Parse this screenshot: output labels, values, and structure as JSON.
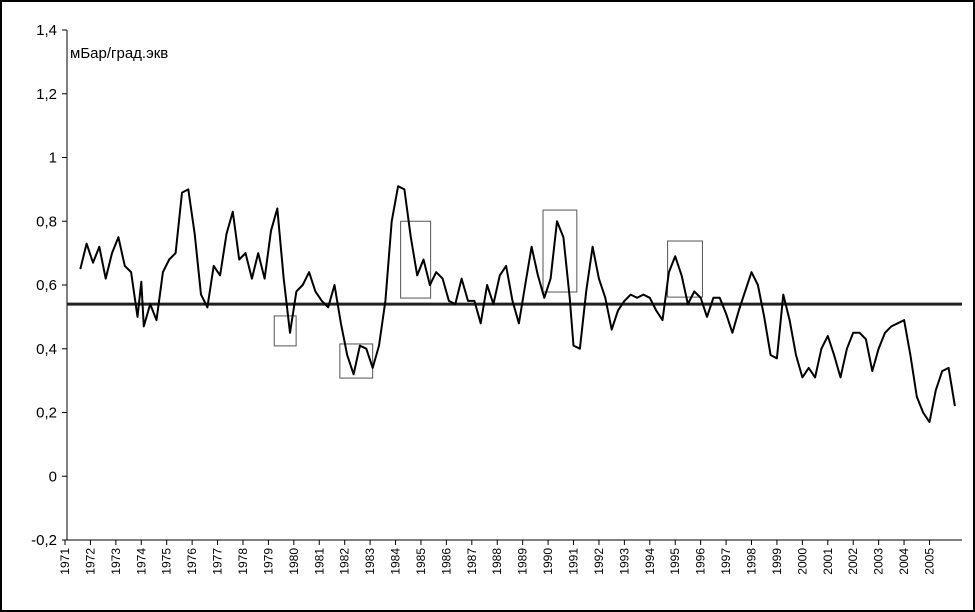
{
  "chart_data": {
    "type": "line",
    "y_label": "мБар/град.экв",
    "xlim": [
      1971,
      2006.2
    ],
    "ylim": [
      -0.2,
      1.4
    ],
    "xticks": [
      1971,
      1972,
      1973,
      1974,
      1975,
      1976,
      1977,
      1978,
      1979,
      1980,
      1981,
      1982,
      1983,
      1984,
      1985,
      1986,
      1987,
      1988,
      1989,
      1990,
      1991,
      1992,
      1993,
      1994,
      1995,
      1996,
      1997,
      1998,
      1999,
      2000,
      2001,
      2002,
      2003,
      2004,
      2005
    ],
    "yticks": [
      {
        "value": -0.2,
        "label": "-0,2"
      },
      0,
      {
        "value": 0.2,
        "label": "0,2"
      },
      {
        "value": 0.4,
        "label": "0,4"
      },
      {
        "value": 0.6,
        "label": "0,6"
      },
      {
        "value": 0.8,
        "label": "0,8"
      },
      1,
      {
        "value": 1.2,
        "label": "1,2"
      },
      {
        "value": 1.4,
        "label": "1,4"
      }
    ],
    "reference_line": {
      "value": 0.54,
      "color": "#222222"
    },
    "boxes": [
      {
        "x": [
          1979.23,
          1980.09
        ],
        "y": [
          0.409,
          0.503
        ]
      },
      {
        "x": [
          1981.81,
          1983.1
        ],
        "y": [
          0.308,
          0.415
        ]
      },
      {
        "x": [
          1984.2,
          1985.38
        ],
        "y": [
          0.559,
          0.8
        ]
      },
      {
        "x": [
          1989.8,
          1991.13
        ],
        "y": [
          0.578,
          0.835
        ]
      },
      {
        "x": [
          1994.7,
          1996.07
        ],
        "y": [
          0.562,
          0.738
        ]
      }
    ],
    "series": [
      {
        "color": "#000000",
        "x": [
          1971.6,
          1971.85,
          1972.1,
          1972.35,
          1972.6,
          1972.85,
          1973.1,
          1973.35,
          1973.6,
          1973.85,
          1974.0,
          1974.1,
          1974.35,
          1974.6,
          1974.85,
          1975.1,
          1975.35,
          1975.6,
          1975.85,
          1976.1,
          1976.35,
          1976.6,
          1976.85,
          1977.1,
          1977.35,
          1977.6,
          1977.85,
          1978.1,
          1978.35,
          1978.6,
          1978.85,
          1979.1,
          1979.35,
          1979.6,
          1979.85,
          1980.1,
          1980.35,
          1980.6,
          1980.85,
          1981.1,
          1981.35,
          1981.6,
          1981.85,
          1982.1,
          1982.35,
          1982.6,
          1982.85,
          1983.1,
          1983.35,
          1983.6,
          1983.85,
          1984.1,
          1984.35,
          1984.6,
          1984.85,
          1985.1,
          1985.35,
          1985.6,
          1985.85,
          1986.1,
          1986.35,
          1986.6,
          1986.85,
          1987.1,
          1987.35,
          1987.6,
          1987.85,
          1988.1,
          1988.35,
          1988.6,
          1988.85,
          1989.1,
          1989.35,
          1989.6,
          1989.85,
          1990.1,
          1990.35,
          1990.6,
          1990.85,
          1991.0,
          1991.25,
          1991.5,
          1991.75,
          1992.0,
          1992.25,
          1992.5,
          1992.75,
          1993.0,
          1993.25,
          1993.5,
          1993.75,
          1994.0,
          1994.25,
          1994.5,
          1994.75,
          1995.0,
          1995.25,
          1995.5,
          1995.75,
          1996.0,
          1996.25,
          1996.5,
          1996.75,
          1997.0,
          1997.25,
          1997.5,
          1997.75,
          1998.0,
          1998.25,
          1998.5,
          1998.75,
          1999.0,
          1999.25,
          1999.5,
          1999.75,
          2000.0,
          2000.25,
          2000.5,
          2000.75,
          2001.0,
          2001.25,
          2001.5,
          2001.75,
          2002.0,
          2002.25,
          2002.5,
          2002.75,
          2003.0,
          2003.25,
          2003.5,
          2003.75,
          2004.0,
          2004.25,
          2004.5,
          2004.75,
          2005.0,
          2005.25,
          2005.5,
          2005.75,
          2006.0
        ],
        "values": [
          0.65,
          0.73,
          0.67,
          0.72,
          0.62,
          0.7,
          0.75,
          0.66,
          0.64,
          0.5,
          0.61,
          0.47,
          0.54,
          0.49,
          0.64,
          0.68,
          0.7,
          0.89,
          0.9,
          0.76,
          0.57,
          0.53,
          0.66,
          0.63,
          0.76,
          0.83,
          0.68,
          0.7,
          0.62,
          0.7,
          0.62,
          0.77,
          0.84,
          0.62,
          0.45,
          0.58,
          0.6,
          0.64,
          0.58,
          0.55,
          0.53,
          0.6,
          0.48,
          0.38,
          0.32,
          0.41,
          0.4,
          0.34,
          0.41,
          0.55,
          0.8,
          0.91,
          0.9,
          0.75,
          0.63,
          0.68,
          0.6,
          0.64,
          0.62,
          0.55,
          0.54,
          0.62,
          0.55,
          0.55,
          0.48,
          0.6,
          0.54,
          0.63,
          0.66,
          0.55,
          0.48,
          0.6,
          0.72,
          0.63,
          0.56,
          0.62,
          0.8,
          0.75,
          0.56,
          0.41,
          0.4,
          0.58,
          0.72,
          0.62,
          0.56,
          0.46,
          0.52,
          0.55,
          0.57,
          0.56,
          0.57,
          0.56,
          0.52,
          0.49,
          0.64,
          0.69,
          0.63,
          0.54,
          0.58,
          0.56,
          0.5,
          0.56,
          0.56,
          0.51,
          0.45,
          0.52,
          0.58,
          0.64,
          0.6,
          0.5,
          0.38,
          0.37,
          0.57,
          0.49,
          0.38,
          0.31,
          0.34,
          0.31,
          0.4,
          0.44,
          0.38,
          0.31,
          0.4,
          0.45,
          0.45,
          0.43,
          0.33,
          0.4,
          0.45,
          0.47,
          0.48,
          0.49,
          0.38,
          0.25,
          0.2,
          0.17,
          0.27,
          0.33,
          0.34,
          0.22
        ]
      }
    ]
  }
}
